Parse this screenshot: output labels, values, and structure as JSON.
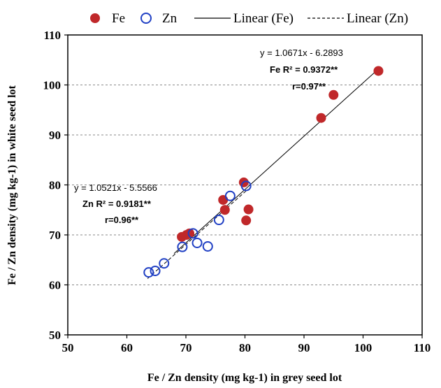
{
  "chart_data": {
    "type": "scatter",
    "xlabel": "Fe / Zn density (mg kg-1) in grey seed lot",
    "ylabel": "Fe / Zn density (mg kg-1) in white seed lot",
    "xlim": [
      50,
      110
    ],
    "ylim": [
      50,
      110
    ],
    "xticks": [
      50,
      60,
      70,
      80,
      90,
      100,
      110
    ],
    "yticks": [
      50,
      60,
      70,
      80,
      90,
      100,
      110
    ],
    "grid": "horizontal dashed",
    "legend_position": "top",
    "legend": {
      "fe": "Fe",
      "zn": "Zn",
      "lin_fe": "Linear (Fe)",
      "lin_zn": "Linear (Zn)"
    },
    "series": [
      {
        "name": "Fe",
        "marker": "filled-circle",
        "color": "#c0282a",
        "points": [
          [
            69.3,
            69.6
          ],
          [
            70.1,
            70.0
          ],
          [
            70.6,
            70.3
          ],
          [
            76.3,
            77.0
          ],
          [
            76.6,
            75.0
          ],
          [
            79.8,
            80.5
          ],
          [
            80.2,
            72.9
          ],
          [
            80.6,
            75.1
          ],
          [
            92.9,
            93.4
          ],
          [
            95.0,
            98.0
          ],
          [
            102.6,
            102.8
          ]
        ],
        "trend": {
          "type": "linear",
          "slope": 1.0671,
          "intercept": -6.2893,
          "style": "solid",
          "x_range": [
            68,
            103
          ]
        }
      },
      {
        "name": "Zn",
        "marker": "open-circle",
        "color": "#1f3fc4",
        "points": [
          [
            63.7,
            62.5
          ],
          [
            64.8,
            62.8
          ],
          [
            66.3,
            64.3
          ],
          [
            69.4,
            67.6
          ],
          [
            71.2,
            70.3
          ],
          [
            71.9,
            68.4
          ],
          [
            73.7,
            67.7
          ],
          [
            75.6,
            73.0
          ],
          [
            77.5,
            77.8
          ],
          [
            80.2,
            79.8
          ]
        ],
        "trend": {
          "type": "linear",
          "slope": 1.0521,
          "intercept": -5.5566,
          "style": "dashed",
          "x_range": [
            63.5,
            80.5
          ]
        }
      }
    ],
    "annotations": {
      "fe_eq": "y = 1.0671x - 6.2893",
      "fe_r2": "Fe R² = 0.9372**",
      "fe_r": "r=0.97**",
      "zn_eq": "y = 1.0521x - 5.5566",
      "zn_r2": "Zn R² = 0.9181**",
      "zn_r": "r=0.96**"
    }
  }
}
